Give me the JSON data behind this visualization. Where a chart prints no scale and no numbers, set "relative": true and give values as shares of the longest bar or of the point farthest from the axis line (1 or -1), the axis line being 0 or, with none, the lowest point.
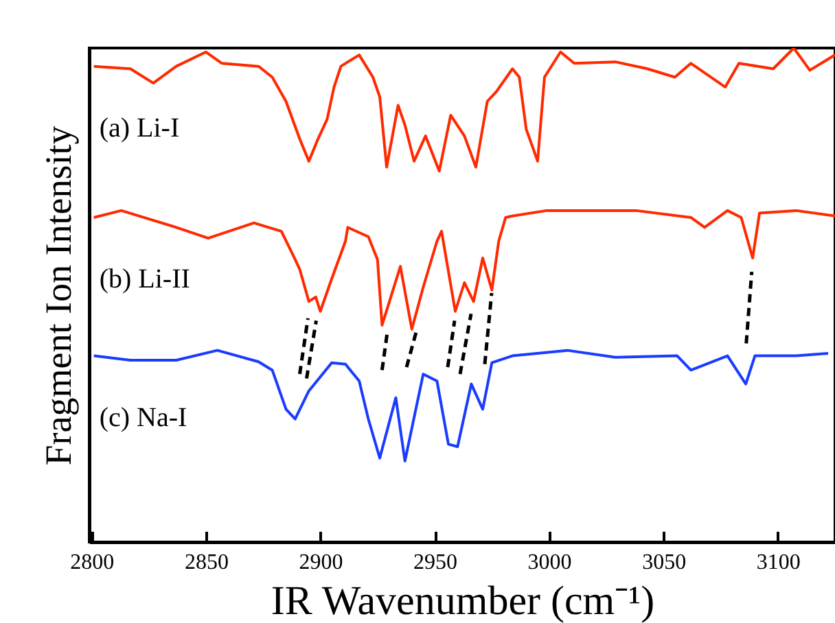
{
  "chart_data": {
    "type": "line",
    "xlabel": "IR Wavenumber (cm⁻¹)",
    "ylabel": "Fragment Ion Intensity",
    "relative": true,
    "tick_labels": "x",
    "grid": false,
    "xlim": [
      2799,
      3125
    ],
    "xticks": [
      2800,
      2850,
      2900,
      2950,
      3000,
      3050,
      3100
    ],
    "series": [
      {
        "name": "(a) Li-I",
        "color": "#ff2a00",
        "x": [
          2801,
          2817,
          2827,
          2837,
          2850,
          2857,
          2873,
          2879,
          2885,
          2891,
          2895,
          2899,
          2903,
          2906,
          2909,
          2917,
          2923,
          2926,
          2929,
          2934,
          2937,
          2941,
          2946,
          2952,
          2957,
          2963,
          2968,
          2973,
          2977,
          2984,
          2987,
          2990,
          2995,
          2998,
          3005,
          3011,
          3029,
          3043,
          3055,
          3062,
          3077,
          3083,
          3098,
          3107,
          3114,
          3125
        ],
        "values": [
          0.963,
          0.958,
          0.929,
          0.963,
          0.992,
          0.969,
          0.963,
          0.941,
          0.892,
          0.816,
          0.771,
          0.816,
          0.856,
          0.921,
          0.963,
          0.986,
          0.941,
          0.901,
          0.759,
          0.884,
          0.844,
          0.771,
          0.822,
          0.751,
          0.864,
          0.822,
          0.759,
          0.892,
          0.912,
          0.958,
          0.941,
          0.836,
          0.771,
          0.941,
          0.992,
          0.969,
          0.972,
          0.958,
          0.941,
          0.969,
          0.921,
          0.969,
          0.958,
          1.0,
          0.955,
          0.986
        ]
      },
      {
        "name": "(b) Li-II",
        "color": "#ff2a00",
        "x": [
          2801,
          2813,
          2837,
          2851,
          2871,
          2883,
          2889,
          2891,
          2895,
          2898,
          2900,
          2905,
          2911,
          2912,
          2921,
          2925,
          2927,
          2935,
          2940,
          2945,
          2951,
          2953,
          2959,
          2963,
          2967,
          2971,
          2975,
          2978,
          2981,
          2984,
          2999,
          3019,
          3038,
          3062,
          3068,
          3078,
          3084,
          3089,
          3092,
          3108,
          3125
        ],
        "values": [
          0.657,
          0.671,
          0.637,
          0.615,
          0.646,
          0.629,
          0.572,
          0.552,
          0.487,
          0.496,
          0.467,
          0.533,
          0.609,
          0.637,
          0.618,
          0.572,
          0.439,
          0.558,
          0.431,
          0.516,
          0.609,
          0.629,
          0.467,
          0.525,
          0.487,
          0.575,
          0.51,
          0.609,
          0.657,
          0.66,
          0.671,
          0.671,
          0.671,
          0.657,
          0.637,
          0.671,
          0.657,
          0.575,
          0.666,
          0.671,
          0.66
        ]
      },
      {
        "name": "(c) Na-I",
        "color": "#1a3cff",
        "x": [
          2801,
          2817,
          2837,
          2855,
          2873,
          2879,
          2885,
          2889,
          2895,
          2905,
          2911,
          2917,
          2921,
          2926,
          2933,
          2937,
          2945,
          2951,
          2956,
          2960,
          2966,
          2971,
          2975,
          2984,
          3008,
          3029,
          3056,
          3062,
          3078,
          3086,
          3090,
          3108,
          3122
        ],
        "values": [
          0.377,
          0.368,
          0.368,
          0.388,
          0.365,
          0.348,
          0.269,
          0.249,
          0.306,
          0.363,
          0.36,
          0.326,
          0.249,
          0.17,
          0.292,
          0.164,
          0.34,
          0.326,
          0.198,
          0.193,
          0.32,
          0.269,
          0.363,
          0.377,
          0.388,
          0.374,
          0.377,
          0.348,
          0.377,
          0.32,
          0.377,
          0.377,
          0.382
        ]
      },
      {
        "color": "#000000",
        "line_style": "dashed",
        "x": [
          2891,
          2894.6
        ],
        "values": [
          0.34,
          0.453
        ]
      },
      {
        "color": "#000000",
        "line_style": "dashed",
        "x": [
          2894,
          2898.2
        ],
        "values": [
          0.331,
          0.448
        ]
      },
      {
        "color": "#000000",
        "line_style": "dashed",
        "x": [
          2927,
          2929.3
        ],
        "values": [
          0.348,
          0.425
        ]
      },
      {
        "color": "#000000",
        "line_style": "dashed",
        "x": [
          2937.7,
          2941.9
        ],
        "values": [
          0.354,
          0.425
        ]
      },
      {
        "color": "#000000",
        "line_style": "dashed",
        "x": [
          2955.7,
          2958.7
        ],
        "values": [
          0.354,
          0.448
        ]
      },
      {
        "color": "#000000",
        "line_style": "dashed",
        "x": [
          2961.1,
          2965.9
        ],
        "values": [
          0.34,
          0.462
        ]
      },
      {
        "color": "#000000",
        "line_style": "dashed",
        "x": [
          2971.9,
          2974.9
        ],
        "values": [
          0.36,
          0.504
        ]
      },
      {
        "color": "#000000",
        "line_style": "dashed",
        "x": [
          3086.2,
          3088.6
        ],
        "values": [
          0.402,
          0.547
        ]
      }
    ]
  }
}
